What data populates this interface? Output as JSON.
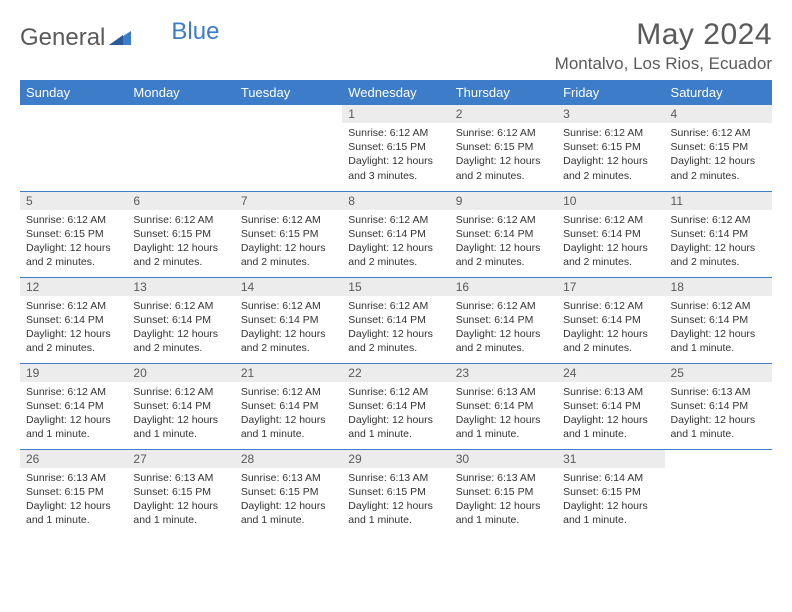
{
  "brand": {
    "part1": "General",
    "part2": "Blue"
  },
  "title": "May 2024",
  "location": "Montalvo, Los Rios, Ecuador",
  "header_bg": "#3d7cc9",
  "daynum_bg": "#ececec",
  "border_color": "#3d7cc9",
  "day_headers": [
    "Sunday",
    "Monday",
    "Tuesday",
    "Wednesday",
    "Thursday",
    "Friday",
    "Saturday"
  ],
  "weeks": [
    [
      null,
      null,
      null,
      {
        "n": "1",
        "sr": "6:12 AM",
        "ss": "6:15 PM",
        "dl": "12 hours and 3 minutes."
      },
      {
        "n": "2",
        "sr": "6:12 AM",
        "ss": "6:15 PM",
        "dl": "12 hours and 2 minutes."
      },
      {
        "n": "3",
        "sr": "6:12 AM",
        "ss": "6:15 PM",
        "dl": "12 hours and 2 minutes."
      },
      {
        "n": "4",
        "sr": "6:12 AM",
        "ss": "6:15 PM",
        "dl": "12 hours and 2 minutes."
      }
    ],
    [
      {
        "n": "5",
        "sr": "6:12 AM",
        "ss": "6:15 PM",
        "dl": "12 hours and 2 minutes."
      },
      {
        "n": "6",
        "sr": "6:12 AM",
        "ss": "6:15 PM",
        "dl": "12 hours and 2 minutes."
      },
      {
        "n": "7",
        "sr": "6:12 AM",
        "ss": "6:15 PM",
        "dl": "12 hours and 2 minutes."
      },
      {
        "n": "8",
        "sr": "6:12 AM",
        "ss": "6:14 PM",
        "dl": "12 hours and 2 minutes."
      },
      {
        "n": "9",
        "sr": "6:12 AM",
        "ss": "6:14 PM",
        "dl": "12 hours and 2 minutes."
      },
      {
        "n": "10",
        "sr": "6:12 AM",
        "ss": "6:14 PM",
        "dl": "12 hours and 2 minutes."
      },
      {
        "n": "11",
        "sr": "6:12 AM",
        "ss": "6:14 PM",
        "dl": "12 hours and 2 minutes."
      }
    ],
    [
      {
        "n": "12",
        "sr": "6:12 AM",
        "ss": "6:14 PM",
        "dl": "12 hours and 2 minutes."
      },
      {
        "n": "13",
        "sr": "6:12 AM",
        "ss": "6:14 PM",
        "dl": "12 hours and 2 minutes."
      },
      {
        "n": "14",
        "sr": "6:12 AM",
        "ss": "6:14 PM",
        "dl": "12 hours and 2 minutes."
      },
      {
        "n": "15",
        "sr": "6:12 AM",
        "ss": "6:14 PM",
        "dl": "12 hours and 2 minutes."
      },
      {
        "n": "16",
        "sr": "6:12 AM",
        "ss": "6:14 PM",
        "dl": "12 hours and 2 minutes."
      },
      {
        "n": "17",
        "sr": "6:12 AM",
        "ss": "6:14 PM",
        "dl": "12 hours and 2 minutes."
      },
      {
        "n": "18",
        "sr": "6:12 AM",
        "ss": "6:14 PM",
        "dl": "12 hours and 1 minute."
      }
    ],
    [
      {
        "n": "19",
        "sr": "6:12 AM",
        "ss": "6:14 PM",
        "dl": "12 hours and 1 minute."
      },
      {
        "n": "20",
        "sr": "6:12 AM",
        "ss": "6:14 PM",
        "dl": "12 hours and 1 minute."
      },
      {
        "n": "21",
        "sr": "6:12 AM",
        "ss": "6:14 PM",
        "dl": "12 hours and 1 minute."
      },
      {
        "n": "22",
        "sr": "6:12 AM",
        "ss": "6:14 PM",
        "dl": "12 hours and 1 minute."
      },
      {
        "n": "23",
        "sr": "6:13 AM",
        "ss": "6:14 PM",
        "dl": "12 hours and 1 minute."
      },
      {
        "n": "24",
        "sr": "6:13 AM",
        "ss": "6:14 PM",
        "dl": "12 hours and 1 minute."
      },
      {
        "n": "25",
        "sr": "6:13 AM",
        "ss": "6:14 PM",
        "dl": "12 hours and 1 minute."
      }
    ],
    [
      {
        "n": "26",
        "sr": "6:13 AM",
        "ss": "6:15 PM",
        "dl": "12 hours and 1 minute."
      },
      {
        "n": "27",
        "sr": "6:13 AM",
        "ss": "6:15 PM",
        "dl": "12 hours and 1 minute."
      },
      {
        "n": "28",
        "sr": "6:13 AM",
        "ss": "6:15 PM",
        "dl": "12 hours and 1 minute."
      },
      {
        "n": "29",
        "sr": "6:13 AM",
        "ss": "6:15 PM",
        "dl": "12 hours and 1 minute."
      },
      {
        "n": "30",
        "sr": "6:13 AM",
        "ss": "6:15 PM",
        "dl": "12 hours and 1 minute."
      },
      {
        "n": "31",
        "sr": "6:14 AM",
        "ss": "6:15 PM",
        "dl": "12 hours and 1 minute."
      },
      null
    ]
  ],
  "labels": {
    "sunrise": "Sunrise:",
    "sunset": "Sunset:",
    "daylight": "Daylight:"
  }
}
